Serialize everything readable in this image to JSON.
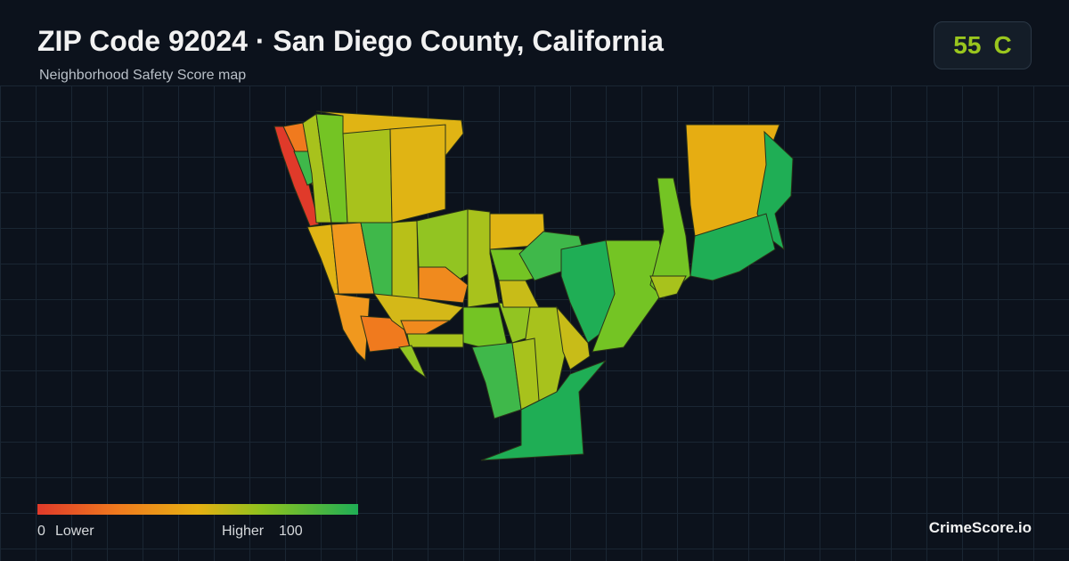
{
  "header": {
    "title": "ZIP Code 92024 · San Diego County, California",
    "subtitle": "Neighborhood Safety Score map"
  },
  "score_badge": {
    "score": 55,
    "grade": "C"
  },
  "legend": {
    "min": 0,
    "min_label": "Lower",
    "max_label": "Higher",
    "max": 100
  },
  "footer": {
    "brand": "CrimeScore.io"
  }
}
